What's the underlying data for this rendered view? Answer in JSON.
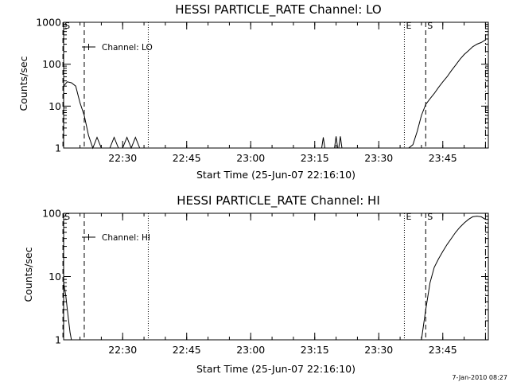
{
  "chart_data": [
    {
      "type": "line",
      "title": "HESSI PARTICLE_RATE Channel: LO",
      "xlabel": "Start Time (25-Jun-07 22:16:10)",
      "ylabel": "Counts/sec",
      "yscale": "log",
      "ylim": [
        1,
        1000
      ],
      "xlim_minutes": [
        0,
        99.5
      ],
      "yticks": [
        1,
        10,
        100,
        1000
      ],
      "ytick_labels": [
        "1",
        "10",
        "100",
        "1000"
      ],
      "xticks": [
        "22:30",
        "22:45",
        "23:00",
        "23:15",
        "23:30",
        "23:45"
      ],
      "legend": "Channel: LO",
      "legend_position": "top-left",
      "markers": [
        {
          "label": "S",
          "time": "22:16",
          "style": "dashed"
        },
        {
          "label": "",
          "time": "22:21",
          "style": "dashed"
        },
        {
          "label": "",
          "time": "22:36",
          "style": "dotted"
        },
        {
          "label": "E",
          "time": "23:36",
          "style": "dotted"
        },
        {
          "label": "S",
          "time": "23:41",
          "style": "dashed"
        },
        {
          "label": "",
          "time": "23:55",
          "style": "dashdot"
        }
      ],
      "series": [
        {
          "x": [
            "22:16:10",
            "22:17:00",
            "22:18:00",
            "22:19:00",
            "22:20:00",
            "22:21:00",
            "22:22:00",
            "22:23:00",
            "22:24:00",
            "22:25:00",
            "22:26:00",
            "22:27:00",
            "22:28:00",
            "22:29:00",
            "22:30:00",
            "22:31:00",
            "22:32:00",
            "22:33:00",
            "22:34:00",
            "22:35:00",
            "23:35:00",
            "23:37:00",
            "23:38:00",
            "23:39:00",
            "23:40:00",
            "23:41:00",
            "23:42:00",
            "23:43:00",
            "23:44:00",
            "23:45:00",
            "23:46:00",
            "23:47:00",
            "23:48:00",
            "23:49:00",
            "23:50:00",
            "23:51:00",
            "23:52:00",
            "23:53:00",
            "23:54:00",
            "23:55:00"
          ],
          "y": [
            30,
            38,
            36,
            30,
            12,
            6,
            2,
            1,
            1.8,
            1,
            1,
            1,
            1.8,
            1,
            1,
            1.8,
            1,
            1.8,
            1,
            1,
            1,
            1,
            1.2,
            2.5,
            6,
            11,
            15,
            20,
            28,
            38,
            50,
            70,
            95,
            130,
            170,
            210,
            260,
            300,
            330,
            380
          ]
        }
      ],
      "extra_spikes": [
        {
          "time": "23:17",
          "y": 1.8
        },
        {
          "time": "23:20",
          "y": 1.9
        },
        {
          "time": "23:21",
          "y": 1.9
        }
      ]
    },
    {
      "type": "line",
      "title": "HESSI PARTICLE_RATE Channel: HI",
      "xlabel": "Start Time (25-Jun-07 22:16:10)",
      "ylabel": "Counts/sec",
      "yscale": "log",
      "ylim": [
        1,
        100
      ],
      "xlim_minutes": [
        0,
        99.5
      ],
      "yticks": [
        1,
        10,
        100
      ],
      "ytick_labels": [
        "1",
        "10",
        "100"
      ],
      "xticks": [
        "22:30",
        "22:45",
        "23:00",
        "23:15",
        "23:30",
        "23:45"
      ],
      "legend": "Channel: HI",
      "legend_position": "top-left",
      "markers": [
        {
          "label": "S",
          "time": "22:16",
          "style": "dashed"
        },
        {
          "label": "",
          "time": "22:21",
          "style": "dashed"
        },
        {
          "label": "",
          "time": "22:36",
          "style": "dotted"
        },
        {
          "label": "E",
          "time": "23:36",
          "style": "dotted"
        },
        {
          "label": "S",
          "time": "23:41",
          "style": "dashed"
        },
        {
          "label": "",
          "time": "23:55",
          "style": "dashdot"
        }
      ],
      "series": [
        {
          "x": [
            "22:16:10",
            "22:16:40",
            "22:17:10",
            "22:17:40",
            "22:18:00",
            "23:40:00",
            "23:41:00",
            "23:42:00",
            "23:43:00",
            "23:44:00",
            "23:45:00",
            "23:46:00",
            "23:47:00",
            "23:48:00",
            "23:49:00",
            "23:50:00",
            "23:51:00",
            "23:52:00",
            "23:53:00",
            "23:54:00",
            "23:55:00"
          ],
          "y": [
            8,
            5,
            2.5,
            1.3,
            1,
            1,
            3,
            8,
            14,
            19,
            25,
            32,
            40,
            50,
            60,
            70,
            80,
            88,
            90,
            88,
            80
          ]
        }
      ]
    }
  ],
  "footer": {
    "timestamp": "7-Jan-2010 08:27"
  },
  "style": {
    "line_color": "#000000",
    "background": "#ffffff"
  }
}
